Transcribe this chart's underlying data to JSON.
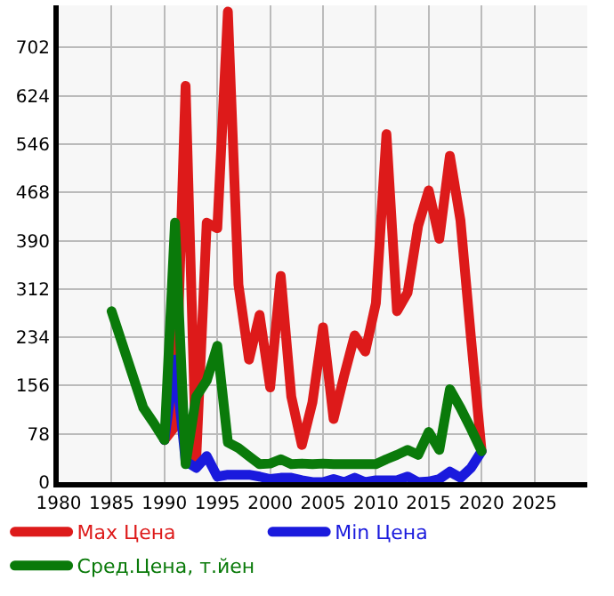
{
  "chart_data": {
    "type": "line",
    "xlim": [
      1980,
      2030
    ],
    "xticks": [
      1980,
      1985,
      1990,
      1995,
      2000,
      2005,
      2010,
      2015,
      2020,
      2025
    ],
    "ylim": [
      0,
      770
    ],
    "yticks": [
      0,
      78,
      156,
      234,
      312,
      390,
      468,
      546,
      624,
      702
    ],
    "grid": true,
    "legend": "bottom",
    "marker": "none",
    "line_style": "solid",
    "series": [
      {
        "name": "Max Цена",
        "color": "#dd1a1a",
        "x": [
          1990,
          1991,
          1992,
          1993,
          1994,
          1995,
          1996,
          1997,
          1998,
          1999,
          2000,
          2001,
          2002,
          2003,
          2004,
          2005,
          2006,
          2007,
          2008,
          2009,
          2010,
          2011,
          2012,
          2013,
          2014,
          2015,
          2016,
          2017,
          2018,
          2019,
          2020
        ],
        "values": [
          68,
          90,
          640,
          35,
          419,
          410,
          760,
          319,
          198,
          270,
          153,
          333,
          138,
          60,
          129,
          250,
          102,
          172,
          237,
          211,
          289,
          562,
          276,
          306,
          414,
          471,
          393,
          527,
          423,
          232,
          50
        ]
      },
      {
        "name": "Min Цена",
        "color": "#1a1add",
        "x": [
          1990,
          1991,
          1992,
          1993,
          1994,
          1995,
          1996,
          1997,
          1998,
          1999,
          2000,
          2001,
          2002,
          2003,
          2004,
          2005,
          2006,
          2007,
          2008,
          2009,
          2010,
          2011,
          2012,
          2013,
          2014,
          2015,
          2016,
          2017,
          2018,
          2019,
          2020
        ],
        "values": [
          68,
          198,
          34,
          23,
          42,
          9,
          12,
          12,
          12,
          9,
          5,
          7,
          7,
          3,
          0,
          0,
          5,
          0,
          7,
          0,
          3,
          3,
          3,
          9,
          0,
          1,
          5,
          17,
          7,
          23,
          50
        ]
      },
      {
        "name": "Сред.Цена, т.йен",
        "color": "#0a7a0a",
        "x": [
          1985,
          1988,
          1989,
          1990,
          1991,
          1992,
          1993,
          1994,
          1995,
          1996,
          1997,
          1998,
          1999,
          2000,
          2001,
          2002,
          2003,
          2004,
          2005,
          2006,
          2007,
          2008,
          2009,
          2010,
          2011,
          2012,
          2013,
          2014,
          2015,
          2016,
          2017,
          2018,
          2019,
          2020
        ],
        "values": [
          276,
          120,
          95,
          68,
          419,
          29,
          138,
          164,
          220,
          64,
          55,
          42,
          29,
          30,
          37,
          29,
          30,
          29,
          30,
          29,
          29,
          29,
          29,
          29,
          37,
          44,
          52,
          44,
          81,
          52,
          150,
          120,
          86,
          50
        ]
      }
    ]
  }
}
